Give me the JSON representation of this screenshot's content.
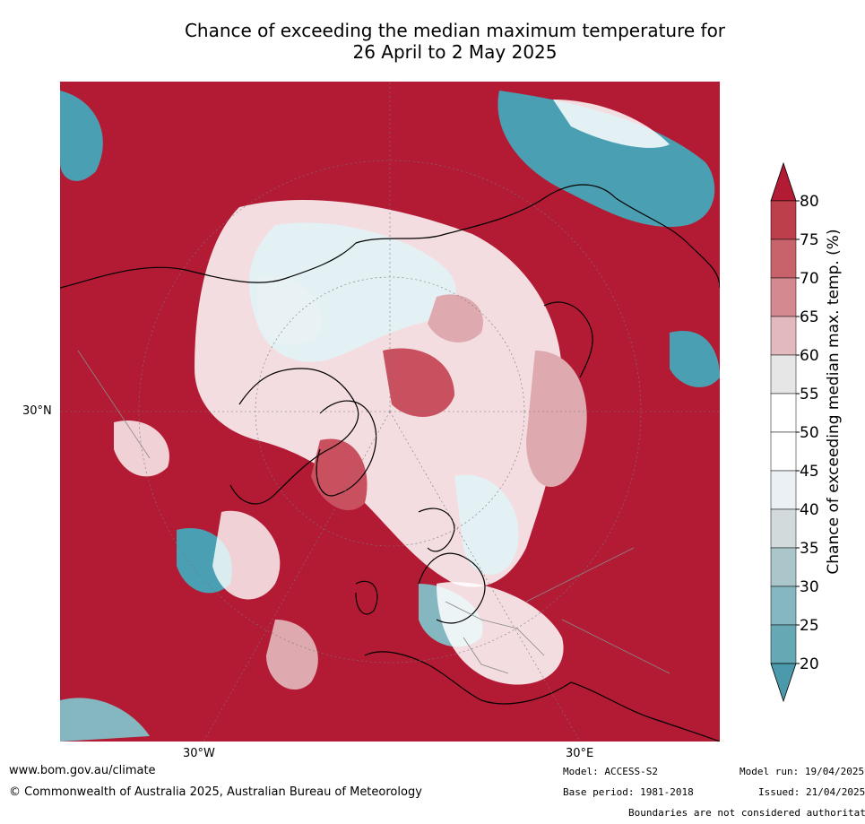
{
  "title_line1": "Chance of exceeding the median maximum temperature for",
  "title_line2": "26 April to 2 May 2025",
  "map": {
    "lat_labels": [
      {
        "text": "30°N"
      }
    ],
    "lon_labels": [
      {
        "text": "30°W"
      },
      {
        "text": "30°E"
      }
    ],
    "colors": {
      "very_warm": "#b31b34",
      "warm": "#c9505e",
      "slightly_warm": "#deaab0",
      "neutral": "#ffffff",
      "slightly_cool": "#c8d6da",
      "cool": "#4aa0b2",
      "land_line": "#000000",
      "border_line": "#888888"
    }
  },
  "colorbar": {
    "title": "Chance of exceeding median max. temp. (%)",
    "ticks": [
      "80",
      "75",
      "70",
      "65",
      "60",
      "55",
      "50",
      "45",
      "40",
      "35",
      "30",
      "25",
      "20"
    ],
    "colors": [
      "#b31b34",
      "#bd3f4b",
      "#c8636c",
      "#d48990",
      "#e2b9bd",
      "#e6e6e6",
      "#ffffff",
      "#ffffff",
      "#eaf0f3",
      "#d2dadc",
      "#abc6cb",
      "#85b7c1",
      "#67a8b5",
      "#4a9aab"
    ]
  },
  "footer": {
    "website": "www.bom.gov.au/climate",
    "copyright": "© Commonwealth of Australia 2025, Australian Bureau of Meteorology",
    "model": "Model: ACCESS-S2",
    "base_period": "Base period: 1981-2018",
    "model_run": "Model run: 19/04/2025",
    "issued": "Issued: 21/04/2025",
    "disclaimer": "Boundaries are not considered authoritative"
  }
}
